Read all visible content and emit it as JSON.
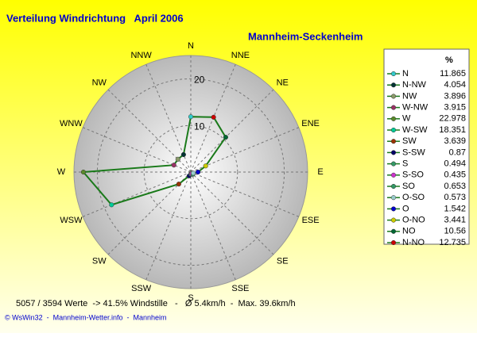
{
  "chart_data": {
    "type": "radar",
    "title": "Verteilung Windrichtung   April 2006",
    "subtitle": "Mannheim-Seckenheim",
    "directions": [
      "N",
      "NNE",
      "NE",
      "ENE",
      "E",
      "ESE",
      "SE",
      "SSE",
      "S",
      "SSW",
      "SW",
      "WSW",
      "W",
      "WNW",
      "NW",
      "NNW"
    ],
    "legend_header": "%",
    "categories": [
      "N",
      "N-NW",
      "NW",
      "W-NW",
      "W",
      "W-SW",
      "SW",
      "S-SW",
      "S",
      "S-SO",
      "SO",
      "O-SO",
      "O",
      "O-NO",
      "NO",
      "N-NO"
    ],
    "values": [
      11.865,
      4.054,
      3.896,
      3.915,
      22.978,
      18.351,
      3.639,
      0.87,
      0.494,
      0.435,
      0.653,
      0.573,
      1.542,
      3.441,
      10.56,
      12.735
    ],
    "colors": [
      "#33cccc",
      "#003333",
      "#8a9a6a",
      "#993366",
      "#5a8a2a",
      "#00cc99",
      "#993300",
      "#000066",
      "#339966",
      "#cc33cc",
      "#339966",
      "#99cccc",
      "#0000cc",
      "#cccc00",
      "#006633",
      "#cc0000"
    ],
    "line_color": "#1a7a1a",
    "rlim": [
      0,
      25
    ],
    "rticks": [
      10,
      20
    ],
    "grid": true,
    "footer": "5057 / 3594 Werte  -> 41.5% Windstille   -   Ø 5.4km/h  -  Max. 39.6km/h",
    "credit": "© WsWin32  -  Mannheim-Wetter.info  -  Mannheim"
  }
}
